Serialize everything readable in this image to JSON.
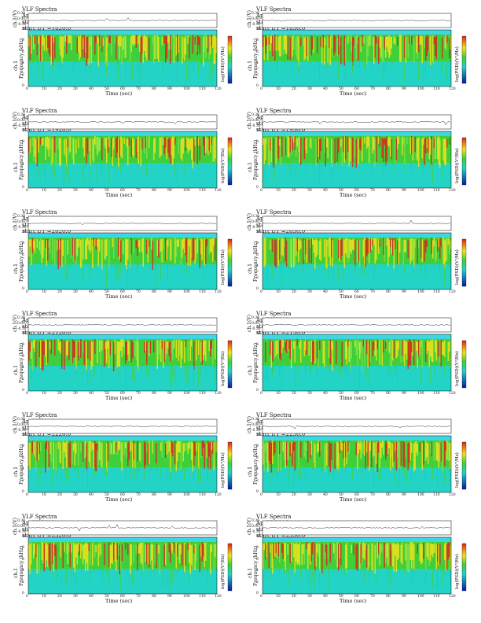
{
  "common": {
    "title_left": "VLF Spectra",
    "date": "Apr22'2010",
    "station": "station=KAG",
    "start_prefix": "start  UT  =",
    "x_label": "Time  (sec)",
    "y_top_label": "ch.1(V)",
    "y_label_1": "ch.1",
    "y_label_2": "Frequency  (kHz)",
    "colorbar_label": "log(PSD)(V²/Hz)",
    "top_ticks": [
      "0.30",
      "0.00",
      "-0.30"
    ],
    "freq_ticks": [
      "10",
      "8",
      "6",
      "4",
      "2",
      "0"
    ],
    "time_ticks": [
      "0",
      "10",
      "20",
      "30",
      "40",
      "50",
      "60",
      "70",
      "80",
      "90",
      "100",
      "110",
      "120"
    ]
  },
  "panels": [
    {
      "ut": "1820:0"
    },
    {
      "ut": "1850:0"
    },
    {
      "ut": "1920:0"
    },
    {
      "ut": "1950:0"
    },
    {
      "ut": "2020:0"
    },
    {
      "ut": "2050:0"
    },
    {
      "ut": "2120:0"
    },
    {
      "ut": "2150:0"
    },
    {
      "ut": "2220:0"
    },
    {
      "ut": "2250:0"
    },
    {
      "ut": "2320:0"
    },
    {
      "ut": "2350:0"
    }
  ],
  "chart_data": {
    "type": "heatmap",
    "title": "VLF Spectra",
    "xlabel": "Time  (sec)",
    "ylabel": "Frequency  (kHz)",
    "xlim": [
      0,
      120
    ],
    "ylim": [
      0,
      10
    ],
    "top_ylim": [
      -0.3,
      0.3
    ],
    "colors": {
      "low": "#0a1a9e",
      "mid": "#22d3c6",
      "green": "#3fcf3a",
      "yellow": "#f2e21a",
      "high": "#d9261c"
    }
  }
}
